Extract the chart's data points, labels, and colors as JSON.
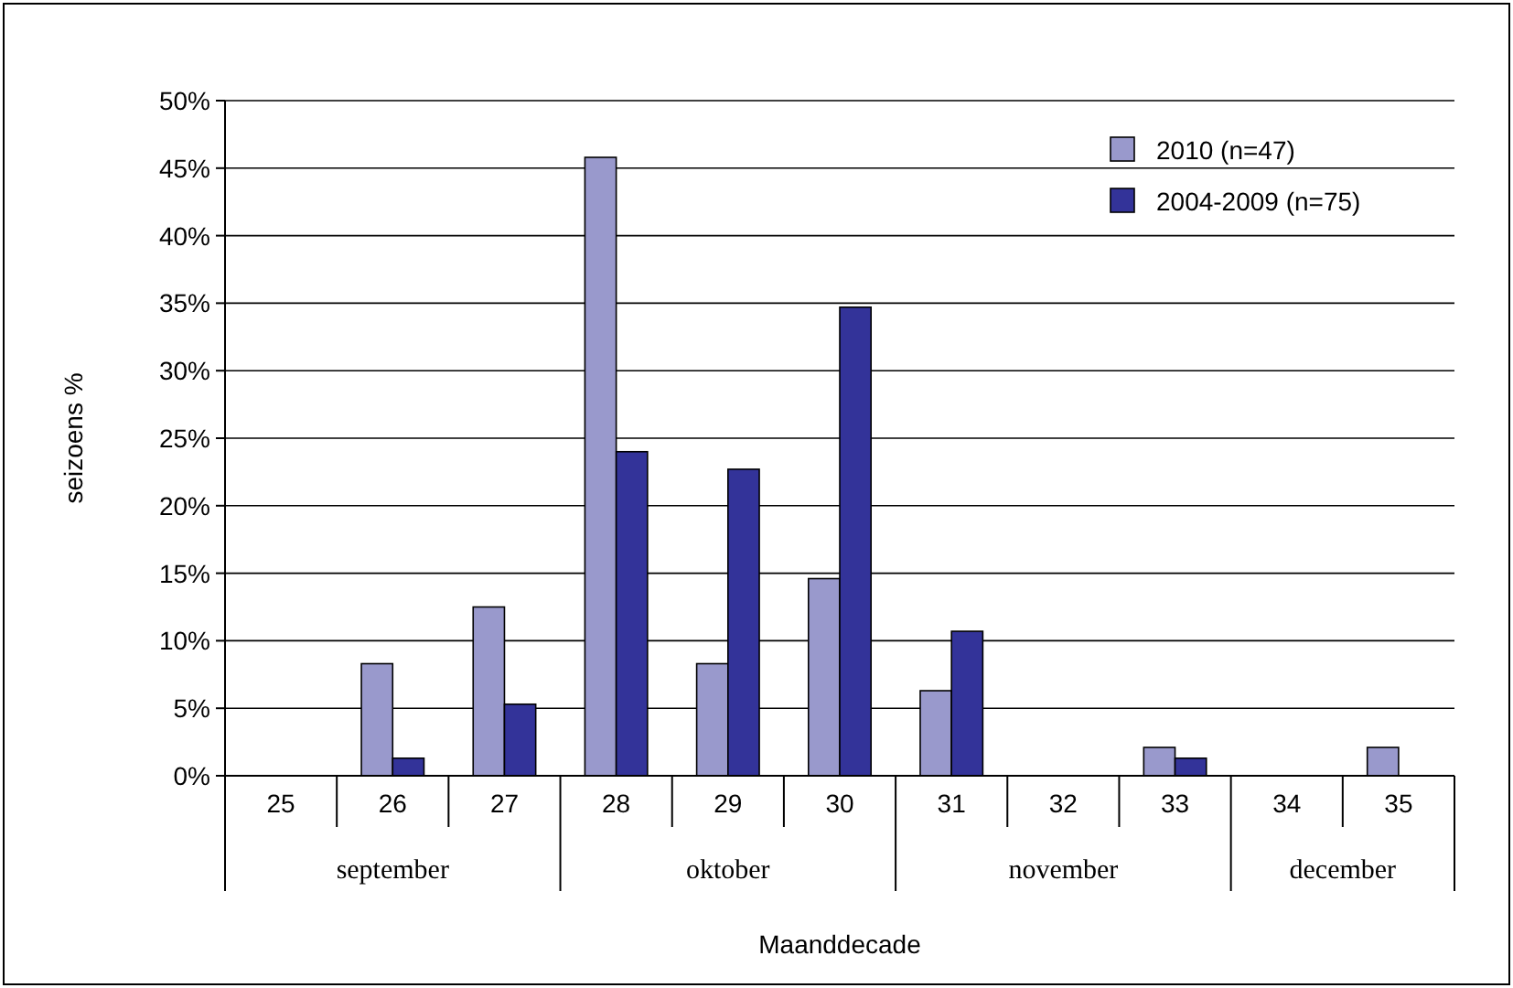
{
  "chart_data": {
    "type": "bar",
    "xlabel": "Maanddecade",
    "ylabel": "seizoens %",
    "categories": [
      "25",
      "26",
      "27",
      "28",
      "29",
      "30",
      "31",
      "32",
      "33",
      "34",
      "35"
    ],
    "series": [
      {
        "name": "2010 (n=47)",
        "color": "#9999cc",
        "values": [
          0,
          8.3,
          12.5,
          45.8,
          8.3,
          14.6,
          6.3,
          0,
          2.1,
          0,
          2.1
        ]
      },
      {
        "name": "2004-2009 (n=75)",
        "color": "#333399",
        "values": [
          0,
          1.3,
          5.3,
          24,
          22.7,
          34.7,
          10.7,
          0,
          1.3,
          0,
          0
        ]
      }
    ],
    "ylim": [
      0,
      50
    ],
    "yticks": [
      {
        "value": 0,
        "label": "0%"
      },
      {
        "value": 5,
        "label": "5%"
      },
      {
        "value": 10,
        "label": "10%"
      },
      {
        "value": 15,
        "label": "15%"
      },
      {
        "value": 20,
        "label": "20%"
      },
      {
        "value": 25,
        "label": "25%"
      },
      {
        "value": 30,
        "label": "30%"
      },
      {
        "value": 35,
        "label": "35%"
      },
      {
        "value": 40,
        "label": "40%"
      },
      {
        "value": 45,
        "label": "45%"
      },
      {
        "value": 50,
        "label": "50%"
      }
    ],
    "grid": "y",
    "legend": "top right",
    "annotations": [
      "september",
      "oktober",
      "november",
      "december"
    ]
  }
}
